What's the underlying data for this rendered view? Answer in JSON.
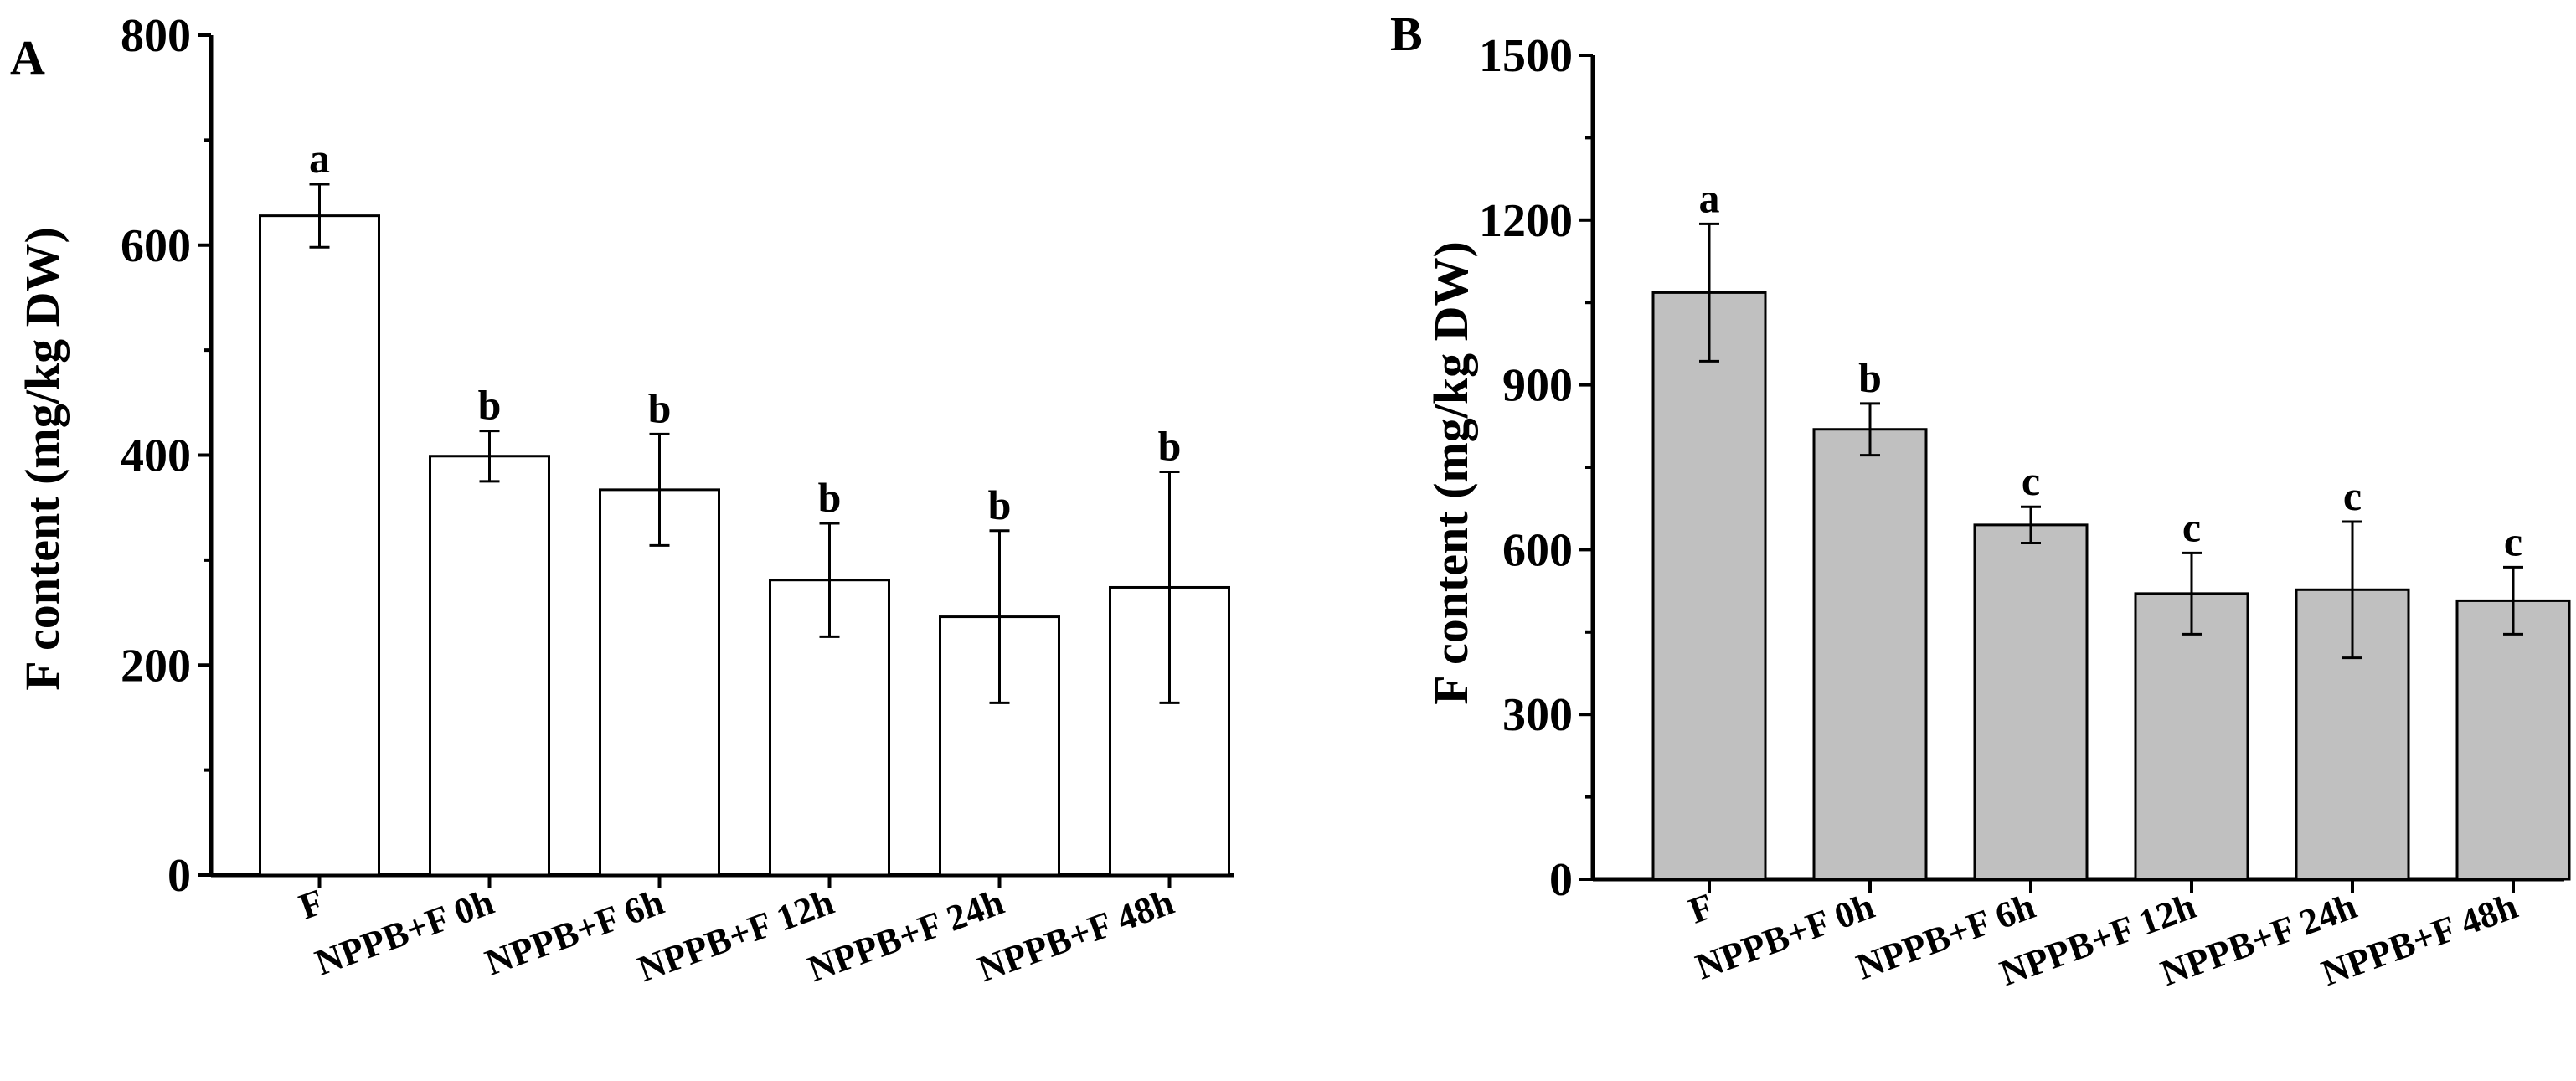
{
  "figure": {
    "panels": [
      "A",
      "B"
    ]
  },
  "chart_data": [
    {
      "panel": "A",
      "type": "bar",
      "ylabel": "F content (mg/kg DW)",
      "xlabel": "",
      "categories": [
        "F",
        "NPPB+F 0h",
        "NPPB+F 6h",
        "NPPB+F 12h",
        "NPPB+F 24h",
        "NPPB+F 48h"
      ],
      "values": [
        628,
        399,
        367,
        281,
        246,
        274
      ],
      "errors": [
        30,
        24,
        53,
        54,
        82,
        110
      ],
      "significance": [
        "a",
        "b",
        "b",
        "b",
        "b",
        "b"
      ],
      "ylim": [
        0,
        800
      ],
      "yticks": [
        0,
        200,
        400,
        600,
        800
      ],
      "bar_color": "#ffffff",
      "grid": false
    },
    {
      "panel": "B",
      "type": "bar",
      "ylabel": "F content (mg/kg DW)",
      "xlabel": "",
      "categories": [
        "F",
        "NPPB+F 0h",
        "NPPB+F 6h",
        "NPPB+F 12h",
        "NPPB+F 24h",
        "NPPB+F 48h"
      ],
      "values": [
        1068,
        819,
        645,
        520,
        527,
        507
      ],
      "errors": [
        125,
        47,
        33,
        74,
        124,
        61
      ],
      "significance": [
        "a",
        "b",
        "c",
        "c",
        "c",
        "c"
      ],
      "ylim": [
        0,
        1500
      ],
      "yticks": [
        0,
        300,
        600,
        900,
        1200,
        1500
      ],
      "bar_color": "#c0c0c0",
      "grid": false
    }
  ]
}
